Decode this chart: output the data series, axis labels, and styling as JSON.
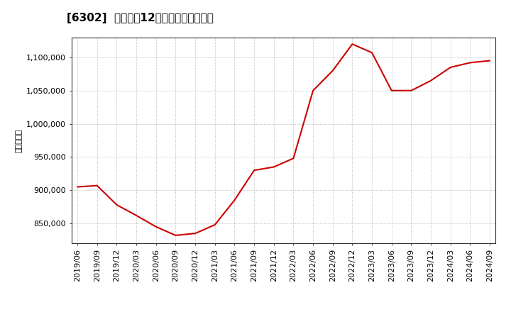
{
  "title": "[6302]  売上高の12か月移動合計の推移",
  "ylabel": "（百万円）",
  "line_color": "#cc0000",
  "background_color": "#ffffff",
  "plot_bg_color": "#ffffff",
  "grid_color": "#aaaaaa",
  "dates": [
    "2019/06",
    "2019/09",
    "2019/12",
    "2020/03",
    "2020/06",
    "2020/09",
    "2020/12",
    "2021/03",
    "2021/06",
    "2021/09",
    "2021/12",
    "2022/03",
    "2022/06",
    "2022/09",
    "2022/12",
    "2023/03",
    "2023/06",
    "2023/09",
    "2023/12",
    "2024/03",
    "2024/06",
    "2024/09"
  ],
  "values": [
    905000,
    907000,
    878000,
    862000,
    845000,
    832000,
    835000,
    848000,
    885000,
    930000,
    935000,
    948000,
    1050000,
    1080000,
    1120000,
    1107000,
    1050000,
    1050000,
    1065000,
    1085000,
    1092000,
    1095000
  ],
  "ylim": [
    820000,
    1130000
  ],
  "yticks": [
    850000,
    900000,
    950000,
    1000000,
    1050000,
    1100000
  ],
  "ytick_labels": [
    "850,000",
    "900,000",
    "950,000",
    "1,000,000",
    "1,050,000",
    "1,100,000"
  ],
  "title_fontsize": 11,
  "axis_fontsize": 8,
  "tick_fontsize": 8
}
